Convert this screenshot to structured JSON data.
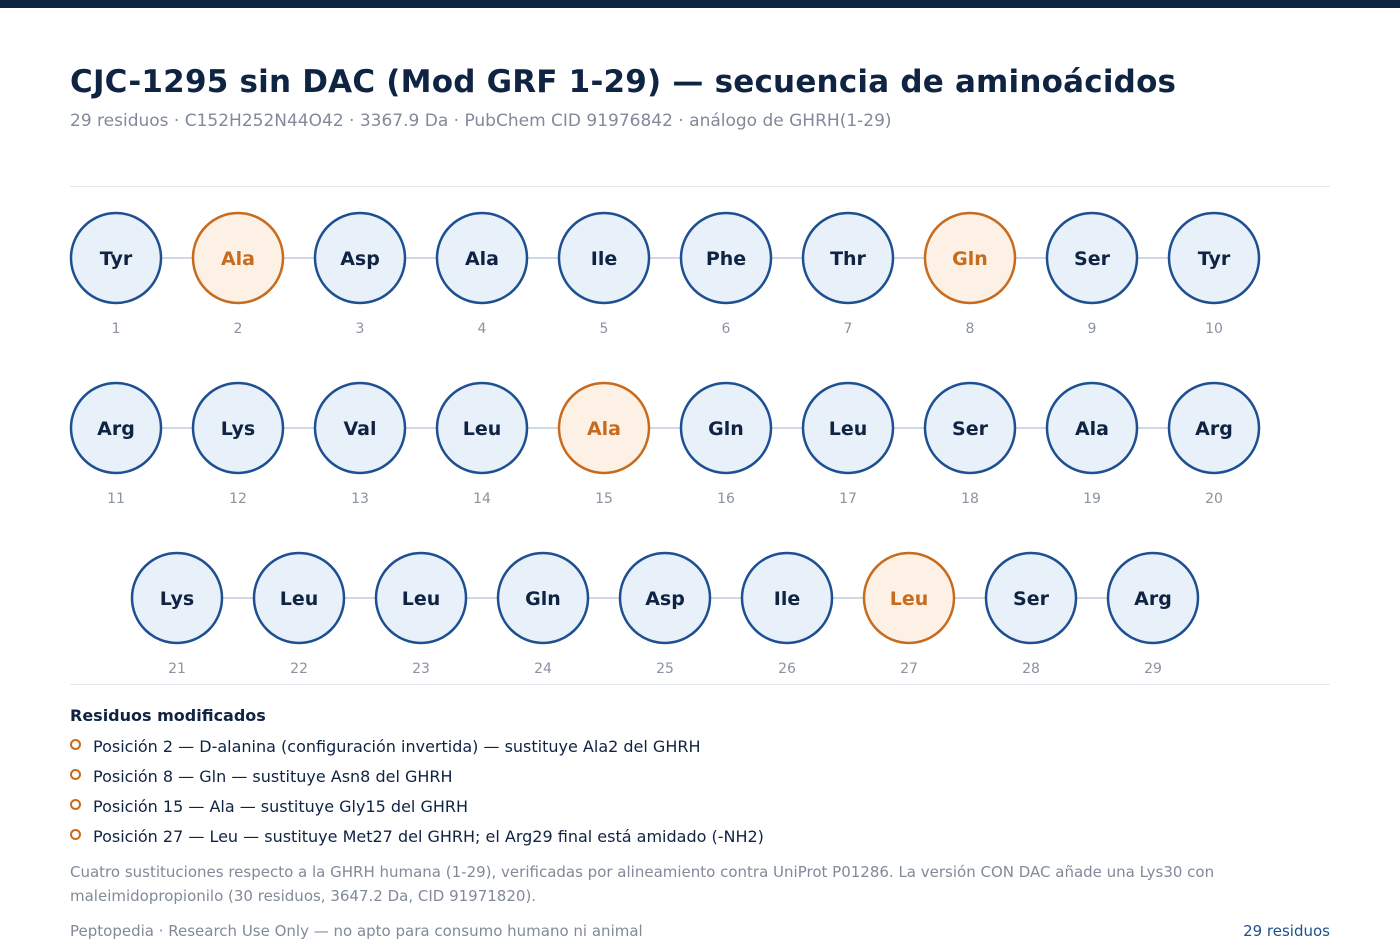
{
  "header": {
    "title": "CJC-1295 sin DAC (Mod GRF 1-29) — secuencia de aminoácidos",
    "subtitle": "29 residuos · C152H252N44O42 · 3367.9 Da · PubChem CID 91976842 · análogo de GHRH(1-29)"
  },
  "colors": {
    "standard_fill": "#e8f0fa",
    "standard_stroke": "#1d4f91",
    "standard_text": "#0f2343",
    "modified_fill": "#fdf0e4",
    "modified_stroke": "#c76b1e",
    "modified_text": "#c76b1e",
    "connector": "#cfd8e3"
  },
  "sequence": [
    {
      "pos": "1",
      "aa": "Tyr",
      "modified": false
    },
    {
      "pos": "2",
      "aa": "Ala",
      "modified": true
    },
    {
      "pos": "3",
      "aa": "Asp",
      "modified": false
    },
    {
      "pos": "4",
      "aa": "Ala",
      "modified": false
    },
    {
      "pos": "5",
      "aa": "Ile",
      "modified": false
    },
    {
      "pos": "6",
      "aa": "Phe",
      "modified": false
    },
    {
      "pos": "7",
      "aa": "Thr",
      "modified": false
    },
    {
      "pos": "8",
      "aa": "Gln",
      "modified": true
    },
    {
      "pos": "9",
      "aa": "Ser",
      "modified": false
    },
    {
      "pos": "10",
      "aa": "Tyr",
      "modified": false
    },
    {
      "pos": "11",
      "aa": "Arg",
      "modified": false
    },
    {
      "pos": "12",
      "aa": "Lys",
      "modified": false
    },
    {
      "pos": "13",
      "aa": "Val",
      "modified": false
    },
    {
      "pos": "14",
      "aa": "Leu",
      "modified": false
    },
    {
      "pos": "15",
      "aa": "Ala",
      "modified": true
    },
    {
      "pos": "16",
      "aa": "Gln",
      "modified": false
    },
    {
      "pos": "17",
      "aa": "Leu",
      "modified": false
    },
    {
      "pos": "18",
      "aa": "Ser",
      "modified": false
    },
    {
      "pos": "19",
      "aa": "Ala",
      "modified": false
    },
    {
      "pos": "20",
      "aa": "Arg",
      "modified": false
    },
    {
      "pos": "21",
      "aa": "Lys",
      "modified": false
    },
    {
      "pos": "22",
      "aa": "Leu",
      "modified": false
    },
    {
      "pos": "23",
      "aa": "Leu",
      "modified": false
    },
    {
      "pos": "24",
      "aa": "Gln",
      "modified": false
    },
    {
      "pos": "25",
      "aa": "Asp",
      "modified": false
    },
    {
      "pos": "26",
      "aa": "Ile",
      "modified": false
    },
    {
      "pos": "27",
      "aa": "Leu",
      "modified": true
    },
    {
      "pos": "28",
      "aa": "Ser",
      "modified": false
    },
    {
      "pos": "29",
      "aa": "Arg",
      "modified": false
    }
  ],
  "legend": {
    "title": "Residuos modificados",
    "items": [
      "Posición 2 — D-alanina (configuración invertida) — sustituye Ala2 del GHRH",
      "Posición 8 — Gln — sustituye Asn8 del GHRH",
      "Posición 15 — Ala — sustituye Gly15 del GHRH",
      "Posición 27 — Leu — sustituye Met27 del GHRH; el Arg29 final está amidado (-NH2)"
    ]
  },
  "note": "Cuatro sustituciones respecto a la GHRH humana (1-29), verificadas por alineamiento contra UniProt P01286. La versión CON DAC añade una Lys30 con maleimidopropionilo (30 residuos, 3647.2 Da, CID 91971820).",
  "footer": {
    "left": "Peptopedia · Research Use Only — no apto para consumo humano ni animal",
    "right": "29 residuos"
  }
}
